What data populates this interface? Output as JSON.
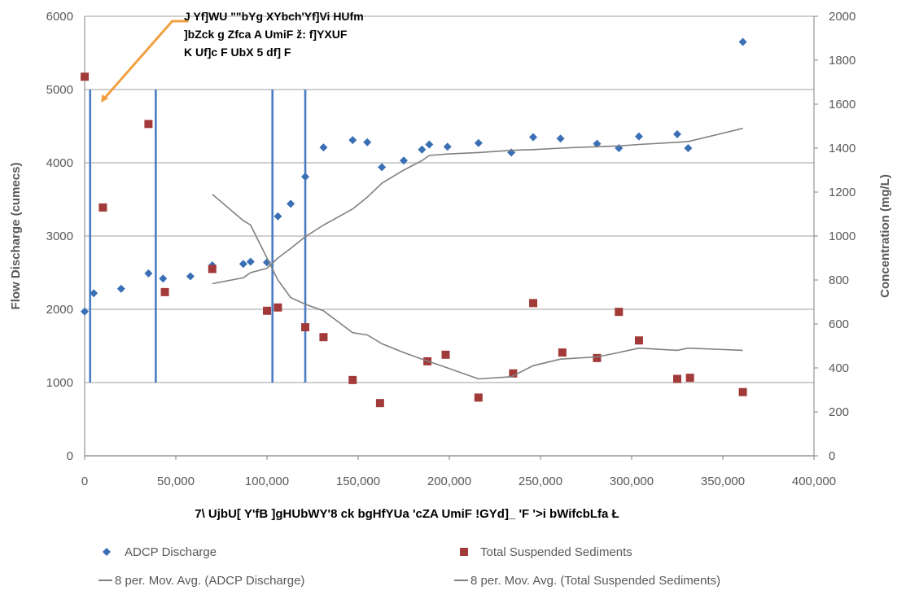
{
  "chart_data": {
    "type": "scatter",
    "xlabel": "7\\ UjbU[ Y'fB ]gHUbWY'8 ck bgHfYUa 'cZA UmiF !GYd]_ 'F '>i bWifcbLfa Ł",
    "ylabel": "Flow Discharge (cumecs)",
    "y2label": "Concentration (mg/L)",
    "xlim": [
      0,
      400000
    ],
    "ylim": [
      0,
      6000
    ],
    "y2lim": [
      0,
      2000
    ],
    "x_ticks": [
      "0",
      "50,000",
      "100,000",
      "150,000",
      "200,000",
      "250,000",
      "300,000",
      "350,000",
      "400,000"
    ],
    "y_ticks": [
      "0",
      "1000",
      "2000",
      "3000",
      "4000",
      "5000",
      "6000"
    ],
    "y2_ticks": [
      "0",
      "200",
      "400",
      "600",
      "800",
      "1000",
      "1200",
      "1400",
      "1600",
      "1800",
      "2000"
    ],
    "grid": "horizontal",
    "legend_position": "bottom",
    "vertical_lines_x": [
      3000,
      39000,
      103000,
      121000
    ],
    "annotation": {
      "lines": [
        "J Yf]WU \"\"bYg XYbch'Yf]Vi HUfm",
        "]bZck g Zfca A UmiF ž: f]YXUF",
        "K Uf]c F UbX 5 df] F"
      ],
      "arrow": [
        [
          5000,
          5000
        ],
        [
          48000,
          6000
        ]
      ]
    },
    "series": [
      {
        "name": "ADCP Discharge",
        "axis": "left",
        "color": "#3a6fb5",
        "marker": "diamond",
        "points": [
          [
            0,
            1970
          ],
          [
            5000,
            2220
          ],
          [
            20000,
            2280
          ],
          [
            35000,
            2490
          ],
          [
            43000,
            2420
          ],
          [
            58000,
            2450
          ],
          [
            70000,
            2600
          ],
          [
            87000,
            2620
          ],
          [
            91000,
            2650
          ],
          [
            100000,
            2640
          ],
          [
            106000,
            3270
          ],
          [
            113000,
            3440
          ],
          [
            121000,
            3810
          ],
          [
            131000,
            4210
          ],
          [
            147000,
            4310
          ],
          [
            155000,
            4280
          ],
          [
            163000,
            3940
          ],
          [
            175000,
            4030
          ],
          [
            185000,
            4180
          ],
          [
            189000,
            4250
          ],
          [
            199000,
            4220
          ],
          [
            216000,
            4270
          ],
          [
            234000,
            4140
          ],
          [
            246000,
            4350
          ],
          [
            261000,
            4330
          ],
          [
            281000,
            4260
          ],
          [
            293000,
            4200
          ],
          [
            304000,
            4360
          ],
          [
            325000,
            4390
          ],
          [
            331000,
            4200
          ],
          [
            361000,
            5650
          ]
        ]
      },
      {
        "name": "Total Suspended Sediments",
        "axis": "right",
        "color": "#a33a3a",
        "marker": "square",
        "points": [
          [
            0,
            1725
          ],
          [
            10000,
            1130
          ],
          [
            35000,
            1510
          ],
          [
            44000,
            745
          ],
          [
            70000,
            850
          ],
          [
            100000,
            660
          ],
          [
            106000,
            675
          ],
          [
            121000,
            585
          ],
          [
            131000,
            540
          ],
          [
            147000,
            345
          ],
          [
            162000,
            240
          ],
          [
            188000,
            430
          ],
          [
            198000,
            460
          ],
          [
            216000,
            265
          ],
          [
            235000,
            375
          ],
          [
            246000,
            695
          ],
          [
            262000,
            470
          ],
          [
            281000,
            445
          ],
          [
            293000,
            655
          ],
          [
            304000,
            525
          ],
          [
            325000,
            350
          ],
          [
            332000,
            355
          ],
          [
            361000,
            290
          ]
        ]
      },
      {
        "name": "8 per. Mov. Avg. (ADCP Discharge)",
        "axis": "left",
        "color": "#808080",
        "line": true,
        "points": [
          [
            70000,
            2350
          ],
          [
            87000,
            2430
          ],
          [
            91000,
            2500
          ],
          [
            100000,
            2560
          ],
          [
            106000,
            2700
          ],
          [
            113000,
            2830
          ],
          [
            121000,
            2990
          ],
          [
            131000,
            3150
          ],
          [
            147000,
            3370
          ],
          [
            155000,
            3530
          ],
          [
            163000,
            3720
          ],
          [
            175000,
            3900
          ],
          [
            185000,
            4030
          ],
          [
            189000,
            4100
          ],
          [
            199000,
            4120
          ],
          [
            216000,
            4140
          ],
          [
            234000,
            4170
          ],
          [
            246000,
            4180
          ],
          [
            261000,
            4200
          ],
          [
            281000,
            4220
          ],
          [
            293000,
            4230
          ],
          [
            304000,
            4250
          ],
          [
            325000,
            4280
          ],
          [
            331000,
            4290
          ],
          [
            361000,
            4470
          ]
        ]
      },
      {
        "name": "8 per. Mov. Avg. (Total Suspended Sediments)",
        "axis": "right",
        "color": "#808080",
        "line": true,
        "points": [
          [
            70000,
            1190
          ],
          [
            87000,
            1070
          ],
          [
            91000,
            1050
          ],
          [
            100000,
            900
          ],
          [
            106000,
            800
          ],
          [
            113000,
            720
          ],
          [
            121000,
            690
          ],
          [
            131000,
            660
          ],
          [
            147000,
            560
          ],
          [
            155000,
            550
          ],
          [
            163000,
            510
          ],
          [
            175000,
            470
          ],
          [
            185000,
            440
          ],
          [
            199000,
            400
          ],
          [
            216000,
            350
          ],
          [
            234000,
            360
          ],
          [
            246000,
            410
          ],
          [
            261000,
            440
          ],
          [
            281000,
            450
          ],
          [
            293000,
            470
          ],
          [
            304000,
            490
          ],
          [
            325000,
            480
          ],
          [
            331000,
            490
          ],
          [
            361000,
            480
          ]
        ]
      }
    ]
  }
}
